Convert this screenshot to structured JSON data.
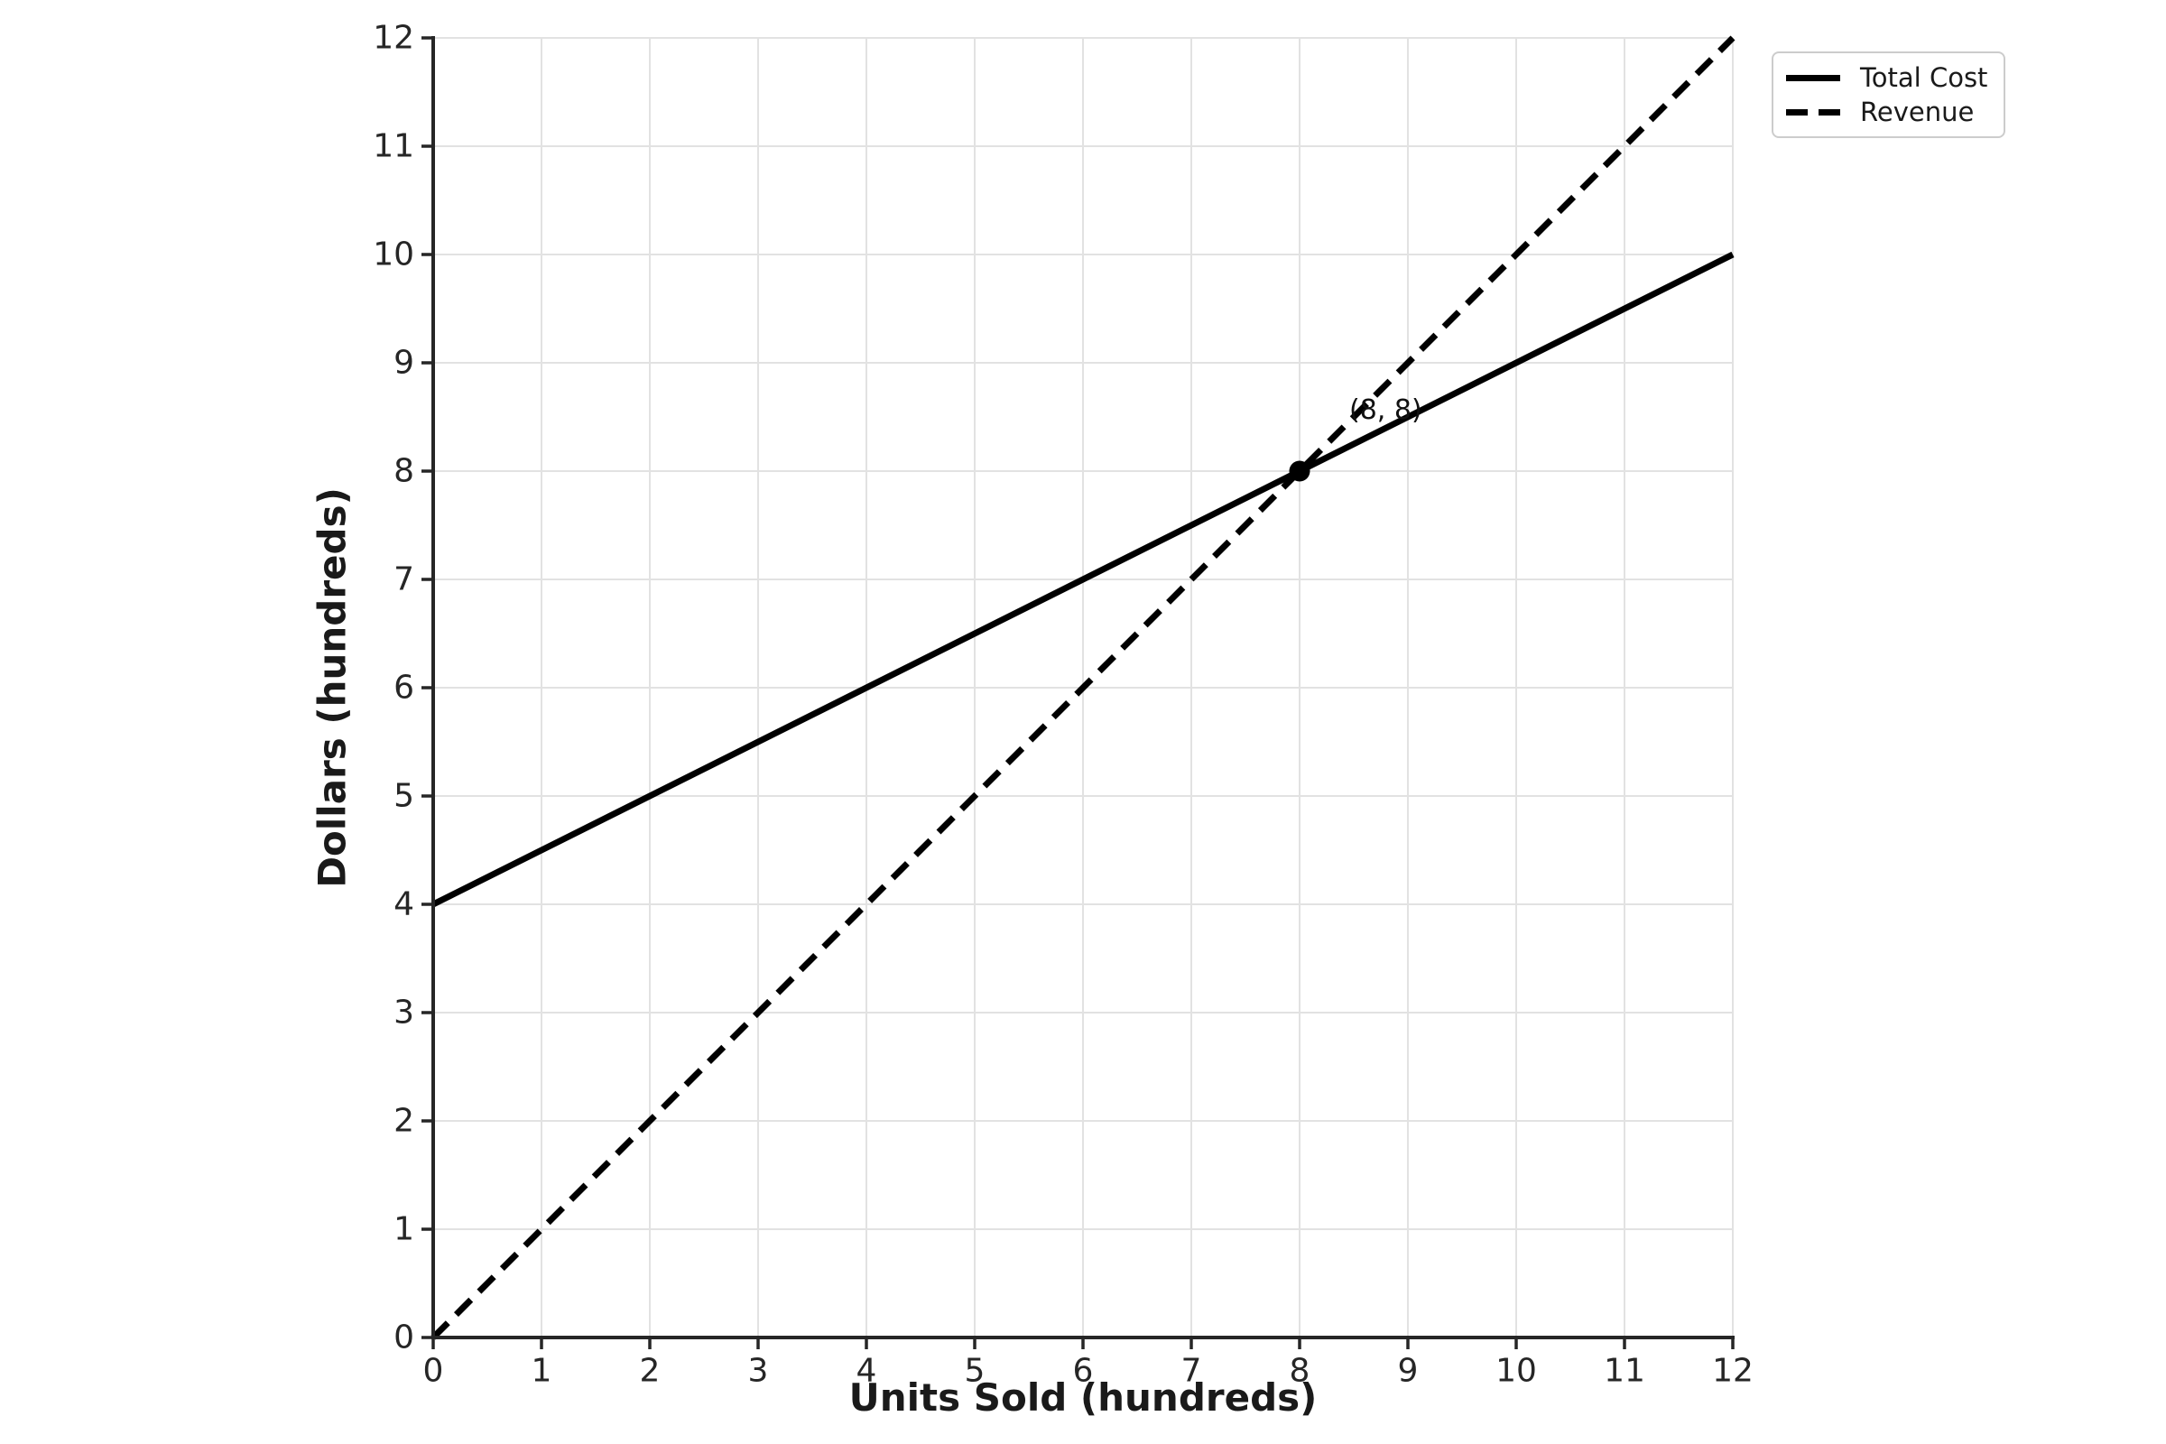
{
  "chart_data": {
    "type": "line",
    "title": "",
    "xlabel": "Units Sold (hundreds)",
    "ylabel": "Dollars (hundreds)",
    "xlim": [
      0,
      12
    ],
    "ylim": [
      0,
      12
    ],
    "xticks": [
      0,
      1,
      2,
      3,
      4,
      5,
      6,
      7,
      8,
      9,
      10,
      11,
      12
    ],
    "yticks": [
      0,
      1,
      2,
      3,
      4,
      5,
      6,
      7,
      8,
      9,
      10,
      11,
      12
    ],
    "grid": true,
    "legend_position": "upper-right-outside",
    "series": [
      {
        "name": "Total Cost",
        "style": "solid",
        "color": "#000000",
        "points": [
          [
            0,
            4
          ],
          [
            12,
            10
          ]
        ]
      },
      {
        "name": "Revenue",
        "style": "dashed",
        "color": "#000000",
        "points": [
          [
            0,
            0
          ],
          [
            12,
            12
          ]
        ]
      }
    ],
    "intersection_point": {
      "x": 8,
      "y": 8,
      "marker": "circle",
      "color": "#000000"
    },
    "annotation": {
      "text": "(8, 8)",
      "x": 8,
      "y": 8
    }
  },
  "colors": {
    "background": "#ffffff",
    "grid": "#e2e2e2",
    "axis": "#262626",
    "tick_text": "#262626",
    "label_text": "#1a1a1a",
    "line": "#000000",
    "legend_border": "#cccccc"
  }
}
